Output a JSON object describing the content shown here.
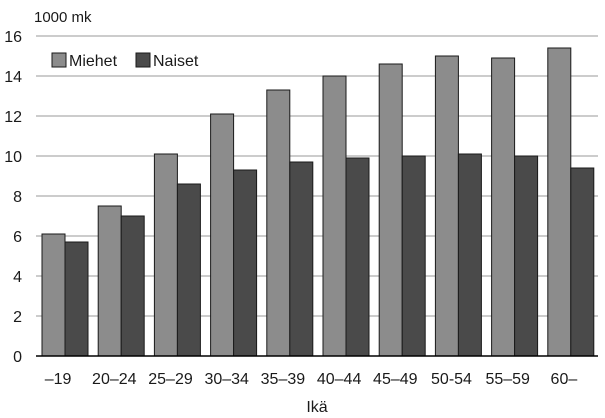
{
  "chart_data": {
    "type": "bar",
    "title": "",
    "ylabel": "1000 mk",
    "xlabel": "Ikä",
    "ylim": [
      0,
      16
    ],
    "yticks": [
      0,
      2,
      4,
      6,
      8,
      10,
      12,
      14,
      16
    ],
    "grid": true,
    "legend_position": "top-left",
    "categories": [
      "–19",
      "20–24",
      "25–29",
      "30–34",
      "35–39",
      "40–44",
      "45–49",
      "50-54",
      "55–59",
      "60–"
    ],
    "series": [
      {
        "name": "Miehet",
        "color": "#8c8c8c",
        "values": [
          6.1,
          7.5,
          10.1,
          12.1,
          13.3,
          14.0,
          14.6,
          15.0,
          14.9,
          15.4
        ]
      },
      {
        "name": "Naiset",
        "color": "#4a4a4a",
        "values": [
          5.7,
          7.0,
          8.6,
          9.3,
          9.7,
          9.9,
          10.0,
          10.1,
          10.0,
          9.4
        ]
      }
    ]
  }
}
